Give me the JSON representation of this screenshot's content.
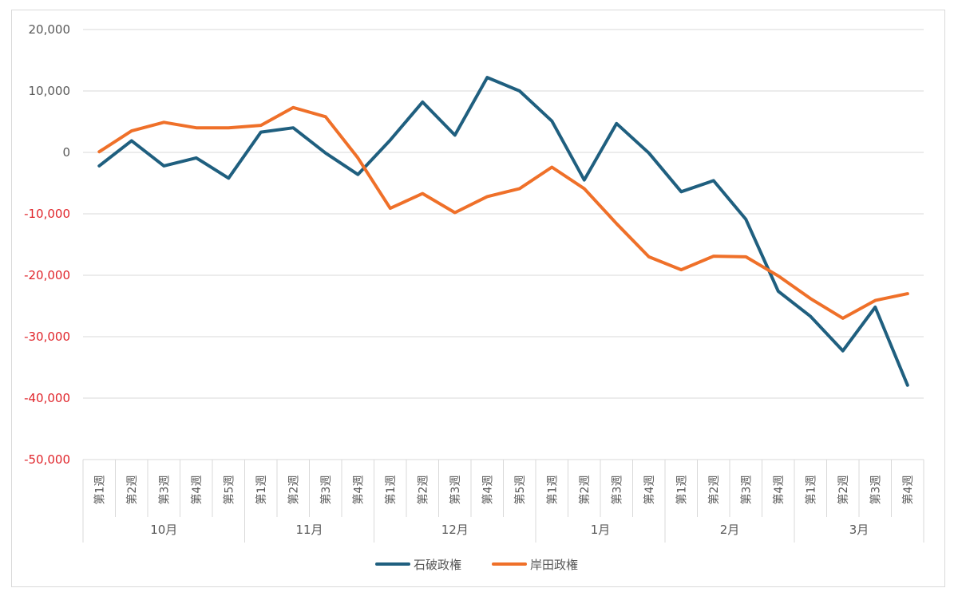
{
  "chart_data": {
    "type": "line",
    "ylim": [
      -50000,
      20000
    ],
    "y_ticks": [
      20000,
      10000,
      0,
      -10000,
      -20000,
      -30000,
      -40000,
      -50000
    ],
    "y_tick_labels": [
      "20,000",
      "10,000",
      "0",
      "-10,000",
      "-20,000",
      "-30,000",
      "-40,000",
      "-50,000"
    ],
    "grid": true,
    "legend_position": "bottom",
    "months": [
      {
        "label": "10月",
        "weeks": [
          "第1週",
          "第2週",
          "第3週",
          "第4週",
          "第5週"
        ]
      },
      {
        "label": "11月",
        "weeks": [
          "第1週",
          "第2週",
          "第3週",
          "第4週"
        ]
      },
      {
        "label": "12月",
        "weeks": [
          "第1週",
          "第2週",
          "第3週",
          "第4週",
          "第5週"
        ]
      },
      {
        "label": "1月",
        "weeks": [
          "第1週",
          "第2週",
          "第3週",
          "第4週"
        ]
      },
      {
        "label": "2月",
        "weeks": [
          "第1週",
          "第2週",
          "第3週",
          "第4週"
        ]
      },
      {
        "label": "3月",
        "weeks": [
          "第1週",
          "第2週",
          "第3週",
          "第4週"
        ]
      }
    ],
    "series": [
      {
        "name": "石破政権",
        "color": "#1f5f7f",
        "values": [
          -2200,
          1900,
          -2200,
          -900,
          -4200,
          3300,
          4000,
          -100,
          -3600,
          2000,
          8200,
          2800,
          12200,
          10000,
          5100,
          -4500,
          4700,
          -100,
          -6400,
          -4600,
          -10900,
          -22600,
          -26700,
          -32300,
          -25200,
          -37900
        ]
      },
      {
        "name": "岸田政権",
        "color": "#ef7029",
        "values": [
          100,
          3500,
          4900,
          4000,
          4000,
          4400,
          7300,
          5800,
          -900,
          -9100,
          -6700,
          -9800,
          -7200,
          -5900,
          -2400,
          -5900,
          -11600,
          -17000,
          -19100,
          -16900,
          -17000,
          -20100,
          -23800,
          -27000,
          -24100,
          -23000
        ]
      }
    ]
  },
  "colors": {
    "negative_tick": "#e0252b",
    "positive_tick": "#595959",
    "grid": "#d9d9d9"
  }
}
